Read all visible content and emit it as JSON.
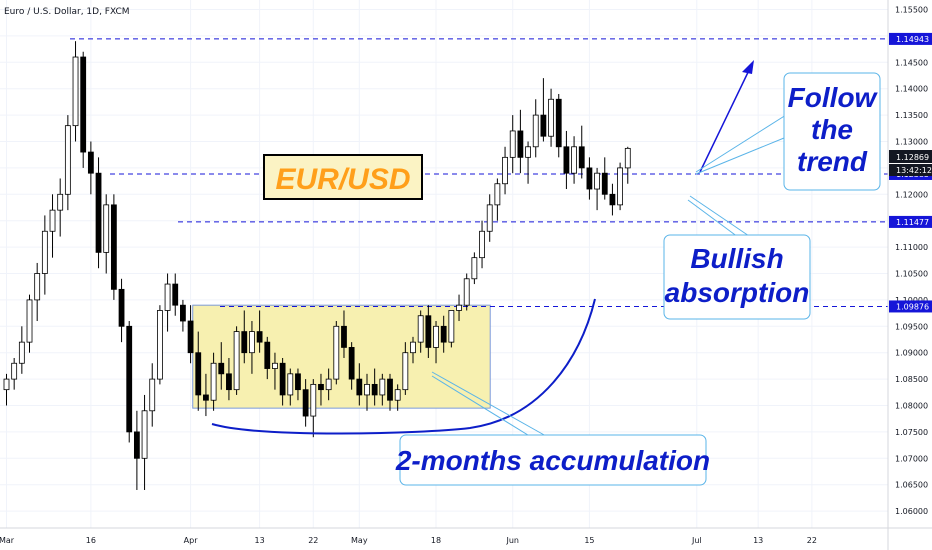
{
  "chart_data": {
    "type": "candlestick",
    "title": "Euro / U.S. Dollar, 1D, FXCM",
    "ylim": [
      1.0568,
      1.1568
    ],
    "y_ticks": [
      "1.15500",
      "1.15000",
      "1.14500",
      "1.14000",
      "1.13500",
      "1.13000",
      "1.12500",
      "1.12000",
      "1.11500",
      "1.11000",
      "1.10500",
      "1.10000",
      "1.09500",
      "1.09000",
      "1.08500",
      "1.08000",
      "1.07500",
      "1.07000",
      "1.06500",
      "1.06000"
    ],
    "x_ticks": [
      {
        "label": "Mar",
        "idx": 0
      },
      {
        "label": "16",
        "idx": 11
      },
      {
        "label": "Apr",
        "idx": 24
      },
      {
        "label": "13",
        "idx": 33
      },
      {
        "label": "22",
        "idx": 40
      },
      {
        "label": "May",
        "idx": 46
      },
      {
        "label": "18",
        "idx": 56
      },
      {
        "label": "Jun",
        "idx": 66
      },
      {
        "label": "15",
        "idx": 76
      },
      {
        "label": "Jul",
        "idx": 90
      },
      {
        "label": "13",
        "idx": 98
      },
      {
        "label": "22",
        "idx": 105
      }
    ],
    "candles": [
      [
        1.083,
        1.086,
        1.08,
        1.085
      ],
      [
        1.085,
        1.089,
        1.083,
        1.088
      ],
      [
        1.088,
        1.095,
        1.086,
        1.092
      ],
      [
        1.092,
        1.101,
        1.09,
        1.1
      ],
      [
        1.1,
        1.107,
        1.096,
        1.105
      ],
      [
        1.105,
        1.116,
        1.101,
        1.113
      ],
      [
        1.113,
        1.12,
        1.108,
        1.117
      ],
      [
        1.117,
        1.123,
        1.112,
        1.12
      ],
      [
        1.12,
        1.135,
        1.117,
        1.133
      ],
      [
        1.133,
        1.149,
        1.13,
        1.146
      ],
      [
        1.146,
        1.147,
        1.125,
        1.128
      ],
      [
        1.128,
        1.13,
        1.12,
        1.124
      ],
      [
        1.124,
        1.127,
        1.106,
        1.109
      ],
      [
        1.109,
        1.12,
        1.105,
        1.118
      ],
      [
        1.118,
        1.12,
        1.1,
        1.102
      ],
      [
        1.102,
        1.104,
        1.092,
        1.095
      ],
      [
        1.095,
        1.096,
        1.073,
        1.075
      ],
      [
        1.075,
        1.079,
        1.064,
        1.07
      ],
      [
        1.07,
        1.082,
        1.064,
        1.079
      ],
      [
        1.079,
        1.088,
        1.076,
        1.085
      ],
      [
        1.085,
        1.099,
        1.084,
        1.098
      ],
      [
        1.098,
        1.105,
        1.094,
        1.103
      ],
      [
        1.103,
        1.105,
        1.097,
        1.099
      ],
      [
        1.099,
        1.1,
        1.094,
        1.096
      ],
      [
        1.096,
        1.099,
        1.088,
        1.09
      ],
      [
        1.09,
        1.094,
        1.079,
        1.082
      ],
      [
        1.082,
        1.086,
        1.078,
        1.081
      ],
      [
        1.081,
        1.09,
        1.079,
        1.088
      ],
      [
        1.088,
        1.092,
        1.083,
        1.086
      ],
      [
        1.086,
        1.089,
        1.081,
        1.083
      ],
      [
        1.083,
        1.095,
        1.082,
        1.094
      ],
      [
        1.094,
        1.098,
        1.088,
        1.09
      ],
      [
        1.09,
        1.096,
        1.086,
        1.094
      ],
      [
        1.094,
        1.098,
        1.09,
        1.092
      ],
      [
        1.092,
        1.093,
        1.085,
        1.087
      ],
      [
        1.087,
        1.09,
        1.083,
        1.088
      ],
      [
        1.088,
        1.089,
        1.08,
        1.082
      ],
      [
        1.082,
        1.087,
        1.08,
        1.086
      ],
      [
        1.086,
        1.087,
        1.081,
        1.083
      ],
      [
        1.083,
        1.085,
        1.076,
        1.078
      ],
      [
        1.078,
        1.085,
        1.074,
        1.084
      ],
      [
        1.084,
        1.086,
        1.08,
        1.083
      ],
      [
        1.083,
        1.087,
        1.081,
        1.085
      ],
      [
        1.085,
        1.096,
        1.084,
        1.095
      ],
      [
        1.095,
        1.098,
        1.089,
        1.091
      ],
      [
        1.091,
        1.092,
        1.083,
        1.085
      ],
      [
        1.085,
        1.088,
        1.08,
        1.082
      ],
      [
        1.082,
        1.086,
        1.079,
        1.084
      ],
      [
        1.084,
        1.087,
        1.08,
        1.082
      ],
      [
        1.082,
        1.086,
        1.08,
        1.085
      ],
      [
        1.085,
        1.086,
        1.079,
        1.081
      ],
      [
        1.081,
        1.084,
        1.079,
        1.083
      ],
      [
        1.083,
        1.092,
        1.082,
        1.09
      ],
      [
        1.09,
        1.093,
        1.088,
        1.092
      ],
      [
        1.092,
        1.098,
        1.09,
        1.097
      ],
      [
        1.097,
        1.099,
        1.089,
        1.091
      ],
      [
        1.091,
        1.096,
        1.088,
        1.095
      ],
      [
        1.095,
        1.097,
        1.09,
        1.092
      ],
      [
        1.092,
        1.098,
        1.091,
        1.098
      ],
      [
        1.098,
        1.101,
        1.096,
        1.099
      ],
      [
        1.099,
        1.105,
        1.098,
        1.104
      ],
      [
        1.104,
        1.109,
        1.103,
        1.108
      ],
      [
        1.108,
        1.115,
        1.106,
        1.113
      ],
      [
        1.113,
        1.12,
        1.111,
        1.118
      ],
      [
        1.118,
        1.123,
        1.115,
        1.122
      ],
      [
        1.122,
        1.129,
        1.12,
        1.127
      ],
      [
        1.127,
        1.135,
        1.124,
        1.132
      ],
      [
        1.132,
        1.136,
        1.124,
        1.127
      ],
      [
        1.127,
        1.13,
        1.122,
        1.129
      ],
      [
        1.129,
        1.138,
        1.127,
        1.135
      ],
      [
        1.135,
        1.142,
        1.13,
        1.131
      ],
      [
        1.131,
        1.14,
        1.129,
        1.138
      ],
      [
        1.138,
        1.139,
        1.127,
        1.129
      ],
      [
        1.129,
        1.132,
        1.121,
        1.124
      ],
      [
        1.124,
        1.131,
        1.122,
        1.129
      ],
      [
        1.129,
        1.133,
        1.123,
        1.125
      ],
      [
        1.125,
        1.127,
        1.119,
        1.121
      ],
      [
        1.121,
        1.125,
        1.117,
        1.124
      ],
      [
        1.124,
        1.127,
        1.119,
        1.12
      ],
      [
        1.12,
        1.122,
        1.116,
        1.118
      ],
      [
        1.118,
        1.126,
        1.117,
        1.125
      ],
      [
        1.125,
        1.129,
        1.122,
        1.1287
      ]
    ],
    "levels": [
      {
        "value": 1.14943,
        "label": "1.14943"
      },
      {
        "value": 1.12385,
        "label": "1.12385"
      },
      {
        "value": 1.11477,
        "label": "1.11477"
      },
      {
        "value": 1.09876,
        "label": "1.09876"
      }
    ],
    "current_price": {
      "label": "1.12869",
      "countdown": "13:42:12",
      "value": 1.12869
    },
    "accumulation_box": {
      "from_idx": 25,
      "to_idx": 63,
      "y_top": 1.099,
      "y_bottom": 1.0795
    }
  },
  "annotations": {
    "symbol": "EUR/USD",
    "follow_trend": [
      "Follow",
      "the",
      "trend"
    ],
    "bullish_absorption": [
      "Bullish",
      "absorption"
    ],
    "accumulation": "2-months accumulation"
  },
  "colors": {
    "up_fill": "#ffffff",
    "down_fill": "#000000",
    "candle_outline": "#000000",
    "level_line": "#1515d8",
    "label_bg": "#1515d8",
    "callout_text": "#0d1ec8",
    "callout_border": "#5ab4e8",
    "box_fill": "#f7f0b0",
    "box_border": "#7c9ad8",
    "symbol_bg": "#fbf3c4",
    "symbol_text": "#ff9f1a"
  }
}
